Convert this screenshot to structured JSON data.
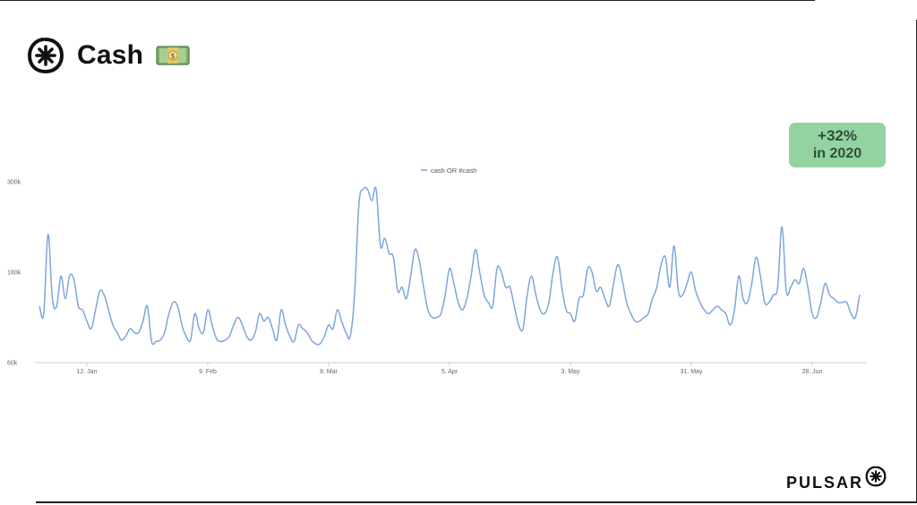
{
  "header": {
    "title": "Cash",
    "emoji_icon": "money-bag-emoji"
  },
  "badge": {
    "line1": "+32%",
    "line2": "in 2020",
    "color": "#93d3a2"
  },
  "footer": {
    "brand": "PULSAR",
    "brand_icon": "pulsar-logo-icon"
  },
  "colors": {
    "series": "#7ea6db",
    "axis": "#cccccc"
  },
  "chart_data": {
    "type": "line",
    "title": "",
    "xlabel": "",
    "ylabel": "",
    "ylim": [
      60000,
      300000
    ],
    "y_ticks": [
      {
        "label": "60k",
        "value": 60000
      },
      {
        "label": "180k",
        "value": 180000
      },
      {
        "label": "300k",
        "value": 300000
      }
    ],
    "x_ticks": [
      "12. Jan",
      "9. Feb",
      "8. Mar",
      "5. Apr",
      "3. May",
      "31. May",
      "28. Jun"
    ],
    "x_tick_days": [
      12,
      40,
      68,
      96,
      124,
      152,
      180
    ],
    "legend": {
      "position": "top-center"
    },
    "grid": false,
    "series": [
      {
        "name": "cash OR #cash",
        "x_start": "2020-01-01",
        "x_end": "2020-07-17",
        "values": [
          135000,
          125000,
          230000,
          145000,
          135000,
          175000,
          145000,
          175000,
          170000,
          135000,
          130000,
          115000,
          105000,
          130000,
          155000,
          150000,
          130000,
          110000,
          100000,
          90000,
          95000,
          105000,
          100000,
          100000,
          115000,
          135000,
          88000,
          88000,
          90000,
          100000,
          125000,
          140000,
          135000,
          110000,
          95000,
          90000,
          125000,
          105000,
          100000,
          130000,
          110000,
          92000,
          88000,
          90000,
          95000,
          110000,
          120000,
          110000,
          95000,
          90000,
          100000,
          125000,
          115000,
          120000,
          105000,
          90000,
          130000,
          110000,
          95000,
          88000,
          110000,
          105000,
          100000,
          90000,
          85000,
          85000,
          95000,
          110000,
          105000,
          130000,
          115000,
          100000,
          95000,
          150000,
          270000,
          290000,
          290000,
          275000,
          290000,
          215000,
          225000,
          205000,
          200000,
          155000,
          160000,
          145000,
          175000,
          210000,
          195000,
          160000,
          130000,
          120000,
          120000,
          125000,
          150000,
          185000,
          165000,
          140000,
          130000,
          145000,
          175000,
          210000,
          180000,
          150000,
          140000,
          135000,
          185000,
          180000,
          160000,
          160000,
          135000,
          110000,
          105000,
          150000,
          175000,
          150000,
          130000,
          125000,
          140000,
          180000,
          200000,
          160000,
          130000,
          125000,
          115000,
          145000,
          150000,
          185000,
          180000,
          155000,
          160000,
          145000,
          135000,
          165000,
          190000,
          170000,
          140000,
          125000,
          115000,
          115000,
          120000,
          125000,
          145000,
          160000,
          190000,
          200000,
          160000,
          215000,
          155000,
          150000,
          165000,
          180000,
          155000,
          140000,
          130000,
          125000,
          130000,
          135000,
          130000,
          125000,
          110000,
          130000,
          175000,
          145000,
          140000,
          165000,
          200000,
          175000,
          140000,
          140000,
          150000,
          160000,
          240000,
          155000,
          160000,
          170000,
          165000,
          185000,
          160000,
          125000,
          120000,
          140000,
          165000,
          150000,
          145000,
          140000,
          140000,
          140000,
          125000,
          120000,
          150000
        ]
      }
    ]
  }
}
